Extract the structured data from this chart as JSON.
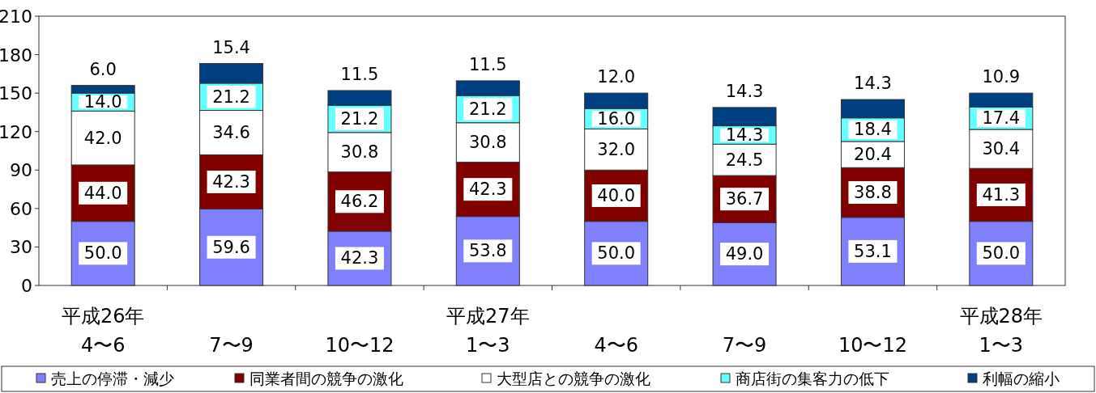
{
  "chart_data": {
    "type": "bar",
    "stacked": true,
    "grid": false,
    "legend": "bottom",
    "categories": [
      "平成26年\n4〜6",
      "7〜9",
      "10〜12",
      "平成27年\n1〜3",
      "4〜6",
      "7〜9",
      "10〜12",
      "平成28年\n1〜3"
    ],
    "ylim": [
      0,
      210
    ],
    "yticks": [
      0,
      30,
      60,
      90,
      120,
      150,
      180,
      210
    ],
    "series": [
      {
        "name": "売上の停滞・減少",
        "color": "#8080ff",
        "values": [
          50.0,
          59.6,
          42.3,
          53.8,
          50.0,
          49.0,
          53.1,
          50.0
        ],
        "value_labels": [
          "50.0",
          "59.6",
          "42.3",
          "53.8",
          "50.0",
          "49.0",
          "53.1",
          "50.0"
        ]
      },
      {
        "name": "同業者間の競争の激化",
        "color": "#800000",
        "values": [
          44.0,
          42.3,
          46.2,
          42.3,
          40.0,
          36.7,
          38.8,
          41.3
        ],
        "value_labels": [
          "44.0",
          "42.3",
          "46.2",
          "42.3",
          "40.0",
          "36.7",
          "38.8",
          "41.3"
        ]
      },
      {
        "name": "大型店との競争の激化",
        "color": "#ffffff",
        "values": [
          42.0,
          34.6,
          30.8,
          30.8,
          32.0,
          24.5,
          20.4,
          30.4
        ],
        "value_labels": [
          "42.0",
          "34.6",
          "30.8",
          "30.8",
          "32.0",
          "24.5",
          "20.4",
          "30.4"
        ]
      },
      {
        "name": "商店街の集客力の低下",
        "color": "#66ffff",
        "values": [
          14.0,
          21.2,
          21.2,
          21.2,
          16.0,
          14.3,
          18.4,
          17.4
        ],
        "value_labels": [
          "14.0",
          "21.2",
          "21.2",
          "21.2",
          "16.0",
          "14.3",
          "18.4",
          "17.4"
        ]
      },
      {
        "name": "利幅の縮小",
        "color": "#003f7f",
        "values": [
          6.0,
          15.4,
          11.5,
          11.5,
          12.0,
          14.3,
          14.3,
          10.9
        ],
        "value_labels": [
          "6.0",
          "15.4",
          "11.5",
          "11.5",
          "12.0",
          "14.3",
          "14.3",
          "10.9"
        ]
      }
    ]
  }
}
